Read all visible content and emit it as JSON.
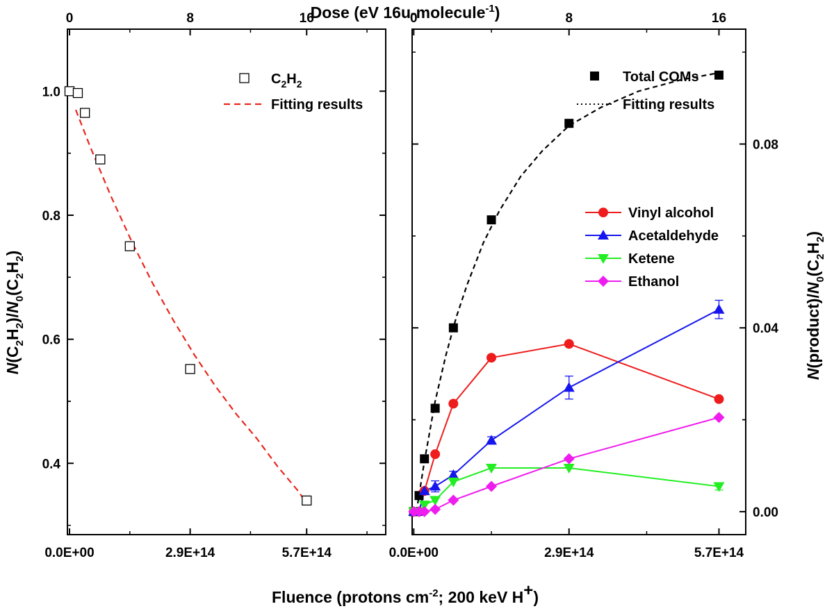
{
  "chart_data": [
    {
      "id": "left",
      "type": "scatter",
      "title": "",
      "xlabel": "Fluence (protons cm⁻²; 200 keV H⁺)",
      "top_xlabel": "Dose (eV 16u-molecule⁻¹)",
      "ylabel": "N(C₂H₂)/N₀(C₂H₂)",
      "xlim": [
        -5000000000000.0,
        760000000000000.0
      ],
      "ylim": [
        0.285,
        1.1
      ],
      "x_ticks": [
        0,
        290000000000000.0,
        570000000000000.0
      ],
      "x_tick_labels": [
        "0.0E+00",
        "2.9E+14",
        "5.7E+14"
      ],
      "top_ticks": [
        0,
        290000000000000.0,
        570000000000000.0
      ],
      "top_tick_labels": [
        "0",
        "8",
        "16"
      ],
      "y_ticks": [
        0.4,
        0.6,
        0.8,
        1.0
      ],
      "y_tick_labels": [
        "0.4",
        "0.6",
        "0.8",
        "1.0"
      ],
      "series": [
        {
          "name": "C2H2",
          "label_main": "C",
          "label_sub1": "2",
          "label_mid": "H",
          "label_sub2": "2",
          "style": "open-square",
          "color": "#000000",
          "x": [
            0,
            20000000000000.0,
            37000000000000.0,
            74000000000000.0,
            145000000000000.0,
            290000000000000.0,
            570000000000000.0
          ],
          "y": [
            1.0,
            0.997,
            0.965,
            0.89,
            0.75,
            0.552,
            0.34
          ]
        },
        {
          "name": "Fitting results",
          "style": "dashed-line",
          "color": "#e8261c",
          "x": [
            15000000000000.0,
            50000000000000.0,
            100000000000000.0,
            150000000000000.0,
            200000000000000.0,
            250000000000000.0,
            300000000000000.0,
            350000000000000.0,
            400000000000000.0,
            450000000000000.0,
            500000000000000.0,
            550000000000000.0,
            570000000000000.0
          ],
          "y": [
            0.97,
            0.91,
            0.83,
            0.757,
            0.69,
            0.63,
            0.575,
            0.525,
            0.48,
            0.44,
            0.395,
            0.355,
            0.335
          ]
        }
      ],
      "legend": [
        "C2H2",
        "Fitting results"
      ],
      "legend_position": "top-right"
    },
    {
      "id": "right",
      "type": "line",
      "title": "",
      "xlabel": "Fluence (protons cm⁻²; 200 keV H⁺)",
      "top_xlabel": "Dose (eV 16u-molecule⁻¹)",
      "ylabel": "N(product)/N₀(C₂H₂)",
      "xlim": [
        -3000000000000.0,
        620000000000000.0
      ],
      "ylim": [
        -0.005,
        0.105
      ],
      "x_ticks": [
        0,
        290000000000000.0,
        570000000000000.0
      ],
      "x_tick_labels": [
        "0.0E+00",
        "2.9E+14",
        "5.7E+14"
      ],
      "top_ticks": [
        0,
        290000000000000.0,
        570000000000000.0
      ],
      "top_tick_labels": [
        "0",
        "8",
        "16"
      ],
      "y_ticks": [
        0,
        0.04,
        0.08
      ],
      "y_tick_labels": [
        "0.00",
        "0.04",
        "0.08"
      ],
      "series": [
        {
          "name": "Total COMs",
          "style": "filled-square",
          "color": "#000000",
          "x": [
            0,
            10000000000000.0,
            20000000000000.0,
            40000000000000.0,
            74000000000000.0,
            145000000000000.0,
            290000000000000.0,
            570000000000000.0
          ],
          "y": [
            0.0,
            0.0035,
            0.0115,
            0.0225,
            0.04,
            0.0635,
            0.0845,
            0.095
          ]
        },
        {
          "name": "Fitting results",
          "style": "dotted-line",
          "color": "#000000",
          "x": [
            5000000000000.0,
            20000000000000.0,
            40000000000000.0,
            60000000000000.0,
            80000000000000.0,
            100000000000000.0,
            130000000000000.0,
            160000000000000.0,
            200000000000000.0,
            240000000000000.0,
            290000000000000.0,
            350000000000000.0,
            420000000000000.0,
            500000000000000.0,
            570000000000000.0
          ],
          "y": [
            0.0,
            0.011,
            0.024,
            0.034,
            0.0425,
            0.0495,
            0.0585,
            0.0655,
            0.073,
            0.0785,
            0.084,
            0.088,
            0.0915,
            0.094,
            0.0955
          ]
        },
        {
          "name": "Vinyl alcohol",
          "style": "circle",
          "color": "#ee1c1c",
          "x": [
            0,
            10000000000000.0,
            20000000000000.0,
            40000000000000.0,
            74000000000000.0,
            145000000000000.0,
            290000000000000.0,
            570000000000000.0
          ],
          "y": [
            0.0,
            0.0,
            0.0045,
            0.0125,
            0.0235,
            0.0335,
            0.0365,
            0.0245
          ],
          "err": [
            0,
            0,
            0,
            0,
            0,
            0,
            0,
            0
          ]
        },
        {
          "name": "Acetaldehyde",
          "style": "triangle-up",
          "color": "#1515ee",
          "x": [
            0,
            10000000000000.0,
            20000000000000.0,
            40000000000000.0,
            74000000000000.0,
            145000000000000.0,
            290000000000000.0,
            570000000000000.0
          ],
          "y": [
            0.0,
            0.0,
            0.0045,
            0.0055,
            0.008,
            0.0155,
            0.027,
            0.044
          ],
          "err": [
            0,
            0,
            0,
            0.0012,
            0.0008,
            0.0008,
            0.0025,
            0.002
          ]
        },
        {
          "name": "Ketene",
          "style": "triangle-down",
          "color": "#22ee22",
          "x": [
            0,
            10000000000000.0,
            20000000000000.0,
            40000000000000.0,
            74000000000000.0,
            145000000000000.0,
            290000000000000.0,
            570000000000000.0
          ],
          "y": [
            0.0,
            0.0,
            0.0015,
            0.0025,
            0.0065,
            0.0095,
            0.0095,
            0.0055
          ],
          "err": [
            0,
            0,
            0,
            0,
            0,
            0,
            0,
            0.0008
          ]
        },
        {
          "name": "Ethanol",
          "style": "diamond",
          "color": "#ee1cee",
          "x": [
            0,
            10000000000000.0,
            20000000000000.0,
            40000000000000.0,
            74000000000000.0,
            145000000000000.0,
            290000000000000.0,
            570000000000000.0
          ],
          "y": [
            0.0,
            0.0,
            0.0,
            0.0005,
            0.0025,
            0.0055,
            0.0115,
            0.0205
          ],
          "err": [
            0,
            0,
            0,
            0,
            0,
            0,
            0,
            0
          ]
        }
      ],
      "legend": [
        "Total COMs",
        "Fitting results",
        "Vinyl alcohol",
        "Acetaldehyde",
        "Ketene",
        "Ethanol"
      ],
      "legend_position": "top-right"
    }
  ],
  "labels": {
    "top_axis_main": "Dose (eV 16u-molecule",
    "top_axis_sup": "-1",
    "top_axis_end": ")",
    "bottom_axis_main": "Fluence (protons cm",
    "bottom_axis_sup": "-2",
    "bottom_axis_mid": "; 200 keV H",
    "bottom_axis_sup2": "+",
    "bottom_axis_end": ")",
    "left_y_italic_N": "N",
    "left_y_part1": "(C",
    "left_y_sub1": "2",
    "left_y_part2": "H",
    "left_y_sub2": "2",
    "left_y_part3": ")/",
    "left_y_italic_N0": "N",
    "left_y_sub0": "0",
    "left_y_part4": "(C",
    "left_y_sub3": "2",
    "left_y_part5": "H",
    "left_y_sub4": "2",
    "left_y_part6": ")",
    "right_y_italic_N": "N",
    "right_y_part1": "(product)/",
    "right_y_italic_N0": "N",
    "right_y_sub0": "0",
    "right_y_part2": "(C",
    "right_y_sub1": "2",
    "right_y_part3": "H",
    "right_y_sub2": "2",
    "right_y_part4": ")"
  }
}
